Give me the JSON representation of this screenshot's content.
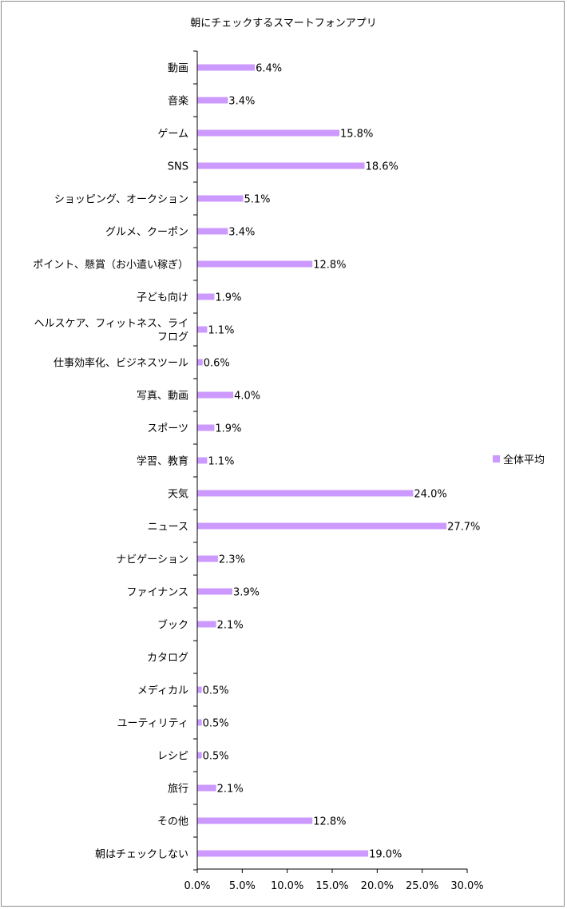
{
  "chart_data": {
    "type": "bar",
    "orientation": "horizontal",
    "title": "朝にチェックするスマートフォンアプリ",
    "categories": [
      "動画",
      "音楽",
      "ゲーム",
      "SNS",
      "ショッピング、オークション",
      "グルメ、クーポン",
      "ポイント、懸賞（お小遣い稼ぎ）",
      "子ども向け",
      "ヘルスケア、フィットネス、ライフログ",
      "仕事効率化、ビジネスツール",
      "写真、動画",
      "スポーツ",
      "学習、教育",
      "天気",
      "ニュース",
      "ナビゲーション",
      "ファイナンス",
      "ブック",
      "カタログ",
      "メディカル",
      "ユーティリティ",
      "レシピ",
      "旅行",
      "その他",
      "朝はチェックしない"
    ],
    "category_display_lines": [
      [
        "動画"
      ],
      [
        "音楽"
      ],
      [
        "ゲーム"
      ],
      [
        "SNS"
      ],
      [
        "ショッピング、オークション"
      ],
      [
        "グルメ、クーポン"
      ],
      [
        "ポイント、懸賞（お小遣い稼ぎ）"
      ],
      [
        "子ども向け"
      ],
      [
        "ヘルスケア、フィットネス、ライ",
        "フログ"
      ],
      [
        "仕事効率化、ビジネスツール"
      ],
      [
        "写真、動画"
      ],
      [
        "スポーツ"
      ],
      [
        "学習、教育"
      ],
      [
        "天気"
      ],
      [
        "ニュース"
      ],
      [
        "ナビゲーション"
      ],
      [
        "ファイナンス"
      ],
      [
        "ブック"
      ],
      [
        "カタログ"
      ],
      [
        "メディカル"
      ],
      [
        "ユーティリティ"
      ],
      [
        "レシピ"
      ],
      [
        "旅行"
      ],
      [
        "その他"
      ],
      [
        "朝はチェックしない"
      ]
    ],
    "series": [
      {
        "name": "全体平均",
        "color": "#cc99ff",
        "values": [
          6.4,
          3.4,
          15.8,
          18.6,
          5.1,
          3.4,
          12.8,
          1.9,
          1.1,
          0.6,
          4.0,
          1.9,
          1.1,
          24.0,
          27.7,
          2.3,
          3.9,
          2.1,
          null,
          0.5,
          0.5,
          0.5,
          2.1,
          12.8,
          19.0
        ],
        "labels": [
          "6.4%",
          "3.4%",
          "15.8%",
          "18.6%",
          "5.1%",
          "3.4%",
          "12.8%",
          "1.9%",
          "1.1%",
          "0.6%",
          "4.0%",
          "1.9%",
          "1.1%",
          "24.0%",
          "27.7%",
          "2.3%",
          "3.9%",
          "2.1%",
          "",
          "0.5%",
          "0.5%",
          "0.5%",
          "2.1%",
          "12.8%",
          "19.0%"
        ]
      }
    ],
    "xlim": [
      0,
      30
    ],
    "x_ticks": [
      0,
      5,
      10,
      15,
      20,
      25,
      30
    ],
    "x_tick_labels": [
      "0.0%",
      "5.0%",
      "10.0%",
      "15.0%",
      "20.0%",
      "25.0%",
      "30.0%"
    ],
    "grid": false,
    "legend": {
      "position": "right",
      "entries": [
        "全体平均"
      ]
    }
  }
}
